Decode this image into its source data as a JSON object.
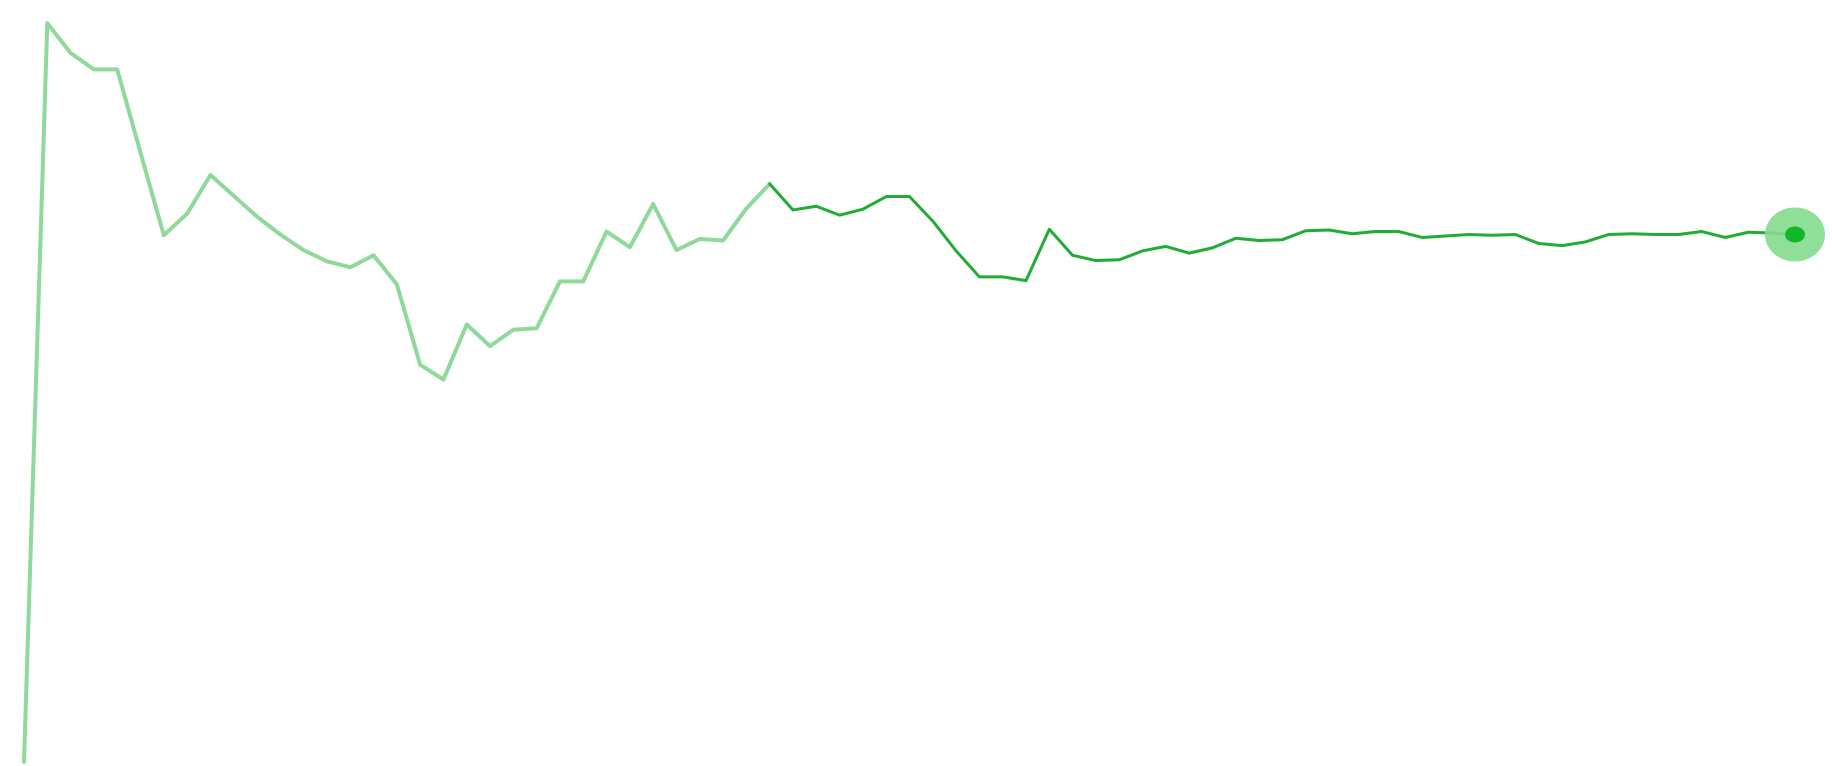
{
  "chart_data": {
    "type": "line",
    "title": "",
    "xlabel": "",
    "ylabel": "",
    "grid": false,
    "legend": "none",
    "ylim": [
      0,
      100
    ],
    "xlim": [
      0,
      76
    ],
    "x": [
      0,
      1,
      2,
      3,
      4,
      5,
      6,
      7,
      8,
      9,
      10,
      11,
      12,
      13,
      14,
      15,
      16,
      17,
      18,
      19,
      20,
      21,
      22,
      23,
      24,
      25,
      26,
      27,
      28,
      29,
      30,
      31,
      32,
      33,
      34,
      35,
      36,
      37,
      38,
      39,
      40,
      41,
      42,
      43,
      44,
      45,
      46,
      47,
      48,
      49,
      50,
      51,
      52,
      53,
      54,
      55,
      56,
      57,
      58,
      59,
      60,
      61,
      62,
      63,
      64,
      65,
      66,
      67,
      68,
      69,
      70,
      71,
      72,
      73,
      74,
      75,
      76
    ],
    "series": [
      {
        "values": [
          0.0,
          99.3,
          95.3,
          93.1,
          93.1,
          81.9,
          70.8,
          73.7,
          78.9,
          76.1,
          73.3,
          70.9,
          68.8,
          67.3,
          66.5,
          68.1,
          64.2,
          53.4,
          51.4,
          58.8,
          55.9,
          58.1,
          58.3,
          64.6,
          64.6,
          71.3,
          69.2,
          75.0,
          68.8,
          70.3,
          70.1,
          74.4,
          77.7,
          74.2,
          74.7,
          73.5,
          74.3,
          76.0,
          76.0,
          72.7,
          68.7,
          65.2,
          65.2,
          64.7,
          71.6,
          68.1,
          67.4,
          67.5,
          68.7,
          69.3,
          68.4,
          69.1,
          70.4,
          70.1,
          70.2,
          71.4,
          71.5,
          71.0,
          71.3,
          71.3,
          70.5,
          70.7,
          70.9,
          70.8,
          70.9,
          69.7,
          69.4,
          69.9,
          70.9,
          71.0,
          70.9,
          70.9,
          71.3,
          70.5,
          71.2,
          71.1,
          70.9
        ],
        "colors": {
          "faded": "#8fd99a",
          "main": "#1fad33",
          "marker_core": "#11b529",
          "marker_halo": "#84dc8e"
        },
        "highlight_from_index": 32,
        "end_marker": true
      }
    ]
  }
}
